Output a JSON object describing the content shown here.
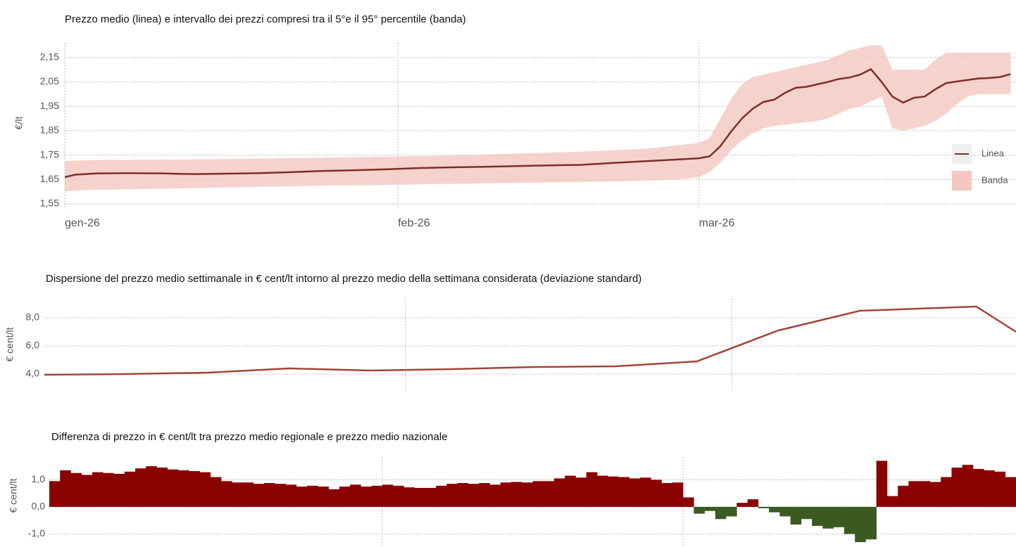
{
  "chart_data": [
    {
      "type": "line_band",
      "title": "Prezzo medio (linea) e intervallo dei prezzi compresi tra il 5°e il 95° percentile (banda)",
      "ylabel": "€/lt",
      "x": [
        0,
        1,
        3,
        6,
        9,
        12,
        15,
        18,
        21,
        24,
        27,
        30,
        33,
        36,
        39,
        42,
        45,
        48,
        51,
        54,
        57,
        59,
        60,
        61,
        62,
        63,
        64,
        65,
        66,
        67,
        68,
        69,
        70,
        71,
        72,
        73,
        74,
        75,
        76,
        77,
        78,
        79,
        80,
        81,
        82,
        83,
        84,
        85,
        86,
        87,
        88
      ],
      "series": [
        {
          "name": "Linea",
          "color": "#7b2f2a",
          "values": [
            1.66,
            1.67,
            1.675,
            1.676,
            1.675,
            1.672,
            1.674,
            1.676,
            1.68,
            1.685,
            1.688,
            1.692,
            1.697,
            1.7,
            1.702,
            1.705,
            1.708,
            1.71,
            1.718,
            1.725,
            1.732,
            1.737,
            1.745,
            1.787,
            1.847,
            1.9,
            1.94,
            1.968,
            1.977,
            2.005,
            2.026,
            2.03,
            2.04,
            2.05,
            2.062,
            2.068,
            2.08,
            2.102,
            2.05,
            1.99,
            1.965,
            1.985,
            1.99,
            2.02,
            2.045,
            2.052,
            2.058,
            2.064,
            2.066,
            2.07,
            2.082
          ]
        }
      ],
      "band": {
        "name": "Banda",
        "color": "#f4c7c0",
        "lower": [
          1.6,
          1.605,
          1.608,
          1.61,
          1.612,
          1.615,
          1.618,
          1.62,
          1.622,
          1.625,
          1.626,
          1.628,
          1.63,
          1.632,
          1.634,
          1.636,
          1.638,
          1.64,
          1.642,
          1.645,
          1.65,
          1.66,
          1.68,
          1.72,
          1.77,
          1.81,
          1.84,
          1.86,
          1.87,
          1.875,
          1.88,
          1.885,
          1.89,
          1.9,
          1.92,
          1.94,
          1.95,
          1.97,
          1.99,
          1.86,
          1.85,
          1.86,
          1.87,
          1.89,
          1.92,
          1.96,
          1.99,
          2.0,
          2.0,
          2.0,
          2.0
        ],
        "upper": [
          1.725,
          1.728,
          1.73,
          1.73,
          1.732,
          1.732,
          1.734,
          1.735,
          1.738,
          1.74,
          1.742,
          1.744,
          1.746,
          1.748,
          1.752,
          1.756,
          1.76,
          1.764,
          1.77,
          1.776,
          1.79,
          1.8,
          1.82,
          1.9,
          1.98,
          2.04,
          2.07,
          2.08,
          2.09,
          2.1,
          2.11,
          2.12,
          2.13,
          2.14,
          2.16,
          2.18,
          2.19,
          2.2,
          2.2,
          2.1,
          2.1,
          2.1,
          2.1,
          2.14,
          2.17,
          2.17,
          2.17,
          2.17,
          2.17,
          2.17,
          2.17
        ]
      },
      "xlim": [
        0,
        88.5
      ],
      "xticks": [
        {
          "value": 0,
          "label": "gen-26"
        },
        {
          "value": 31,
          "label": "feb-26"
        },
        {
          "value": 59,
          "label": "mar-26"
        }
      ],
      "ylim": [
        1.527,
        2.21
      ],
      "yticks": [
        {
          "value": 1.55,
          "label": "1,55"
        },
        {
          "value": 1.65,
          "label": "1,65"
        },
        {
          "value": 1.75,
          "label": "1,75"
        },
        {
          "value": 1.85,
          "label": "1,85"
        },
        {
          "value": 1.95,
          "label": "1,95"
        },
        {
          "value": 2.05,
          "label": "2,05"
        },
        {
          "value": 2.15,
          "label": "2,15"
        }
      ],
      "grid": true,
      "legend": "right"
    },
    {
      "type": "line",
      "title": "Dispersione del prezzo medio settimanale in € cent/lt intorno al prezzo medio della settimana considerata (deviazione standard)",
      "ylabel": "€ cent/lt",
      "x": [
        0,
        7,
        14,
        21,
        28,
        35,
        42,
        49,
        56,
        63,
        70,
        80,
        83.4
      ],
      "series": [
        {
          "name": "Deviazione standard",
          "color": "#a0463a",
          "values": [
            3.95,
            4.0,
            4.1,
            4.4,
            4.25,
            4.35,
            4.5,
            4.55,
            4.9,
            7.1,
            8.5,
            8.8,
            7.0
          ]
        }
      ],
      "xlim": [
        0,
        83.4
      ],
      "xgrid": [
        31,
        59
      ],
      "ylim": [
        2.85,
        9.35
      ],
      "yticks": [
        {
          "value": 4,
          "label": "4,0"
        },
        {
          "value": 6,
          "label": "6,0"
        },
        {
          "value": 8,
          "label": "8,0"
        }
      ],
      "grid": true
    },
    {
      "type": "bar",
      "title": "Differenza di prezzo in € cent/lt tra prezzo medio regionale e prezzo medio nazionale",
      "ylabel": "€ cent/lt",
      "values": [
        0.95,
        1.35,
        1.25,
        1.18,
        1.28,
        1.25,
        1.22,
        1.3,
        1.42,
        1.5,
        1.45,
        1.38,
        1.35,
        1.32,
        1.28,
        1.1,
        0.95,
        0.9,
        0.9,
        0.85,
        0.88,
        0.85,
        0.82,
        0.75,
        0.78,
        0.75,
        0.65,
        0.75,
        0.82,
        0.75,
        0.78,
        0.82,
        0.78,
        0.72,
        0.7,
        0.7,
        0.78,
        0.85,
        0.88,
        0.85,
        0.88,
        0.82,
        0.9,
        0.92,
        0.9,
        0.95,
        0.95,
        1.05,
        1.15,
        1.08,
        1.28,
        1.15,
        1.12,
        1.1,
        1.05,
        1.08,
        1.0,
        0.88,
        0.9,
        0.35,
        -0.25,
        -0.15,
        -0.45,
        -0.35,
        0.15,
        0.28,
        -0.05,
        -0.2,
        -0.35,
        -0.65,
        -0.45,
        -0.7,
        -0.8,
        -0.75,
        -1.0,
        -1.3,
        -1.2,
        1.7,
        0.4,
        0.78,
        0.95,
        0.95,
        0.92,
        1.1,
        1.45,
        1.55,
        1.4,
        1.35,
        1.3,
        1.1
      ],
      "color": "#8b0000",
      "negative_color": "#3b5a22",
      "xgrid": [
        31,
        59
      ],
      "ylim": [
        -1.48,
        1.84
      ],
      "yticks": [
        {
          "value": -1,
          "label": "-1,0"
        },
        {
          "value": 0,
          "label": "0,0"
        },
        {
          "value": 1,
          "label": "1,0"
        }
      ],
      "grid": true
    }
  ]
}
